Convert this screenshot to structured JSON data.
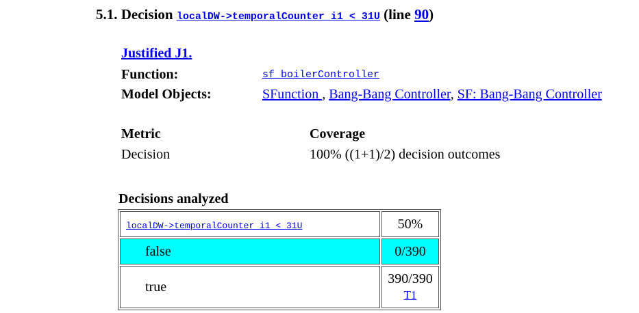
{
  "section": {
    "prefix": "5.1. Decision",
    "expression": "localDW->temporalCounter_i1 < 31U",
    "line_prefix": "(line",
    "line_number": "90",
    "line_suffix": ")"
  },
  "justification": {
    "link": "Justified J1."
  },
  "details": {
    "function_label": "Function:",
    "function_value": "sf_boilerController",
    "model_objects_label": "Model Objects:",
    "model_objects": [
      "SFunction ",
      "Bang-Bang Controller",
      "SF: Bang-Bang Controller"
    ]
  },
  "metrics": {
    "headers": [
      "Metric",
      "Coverage"
    ],
    "rows": [
      {
        "metric": "Decision",
        "coverage": "100% ((1+1)/2) decision outcomes"
      }
    ]
  },
  "decisions": {
    "title": "Decisions analyzed",
    "expression": "localDW->temporalCounter_i1 < 31U",
    "percent": "50%",
    "outcomes": [
      {
        "label": "false",
        "count": "0/390",
        "highlight": "#00ffff"
      },
      {
        "label": "true",
        "count": "390/390",
        "link": "T1"
      }
    ]
  }
}
